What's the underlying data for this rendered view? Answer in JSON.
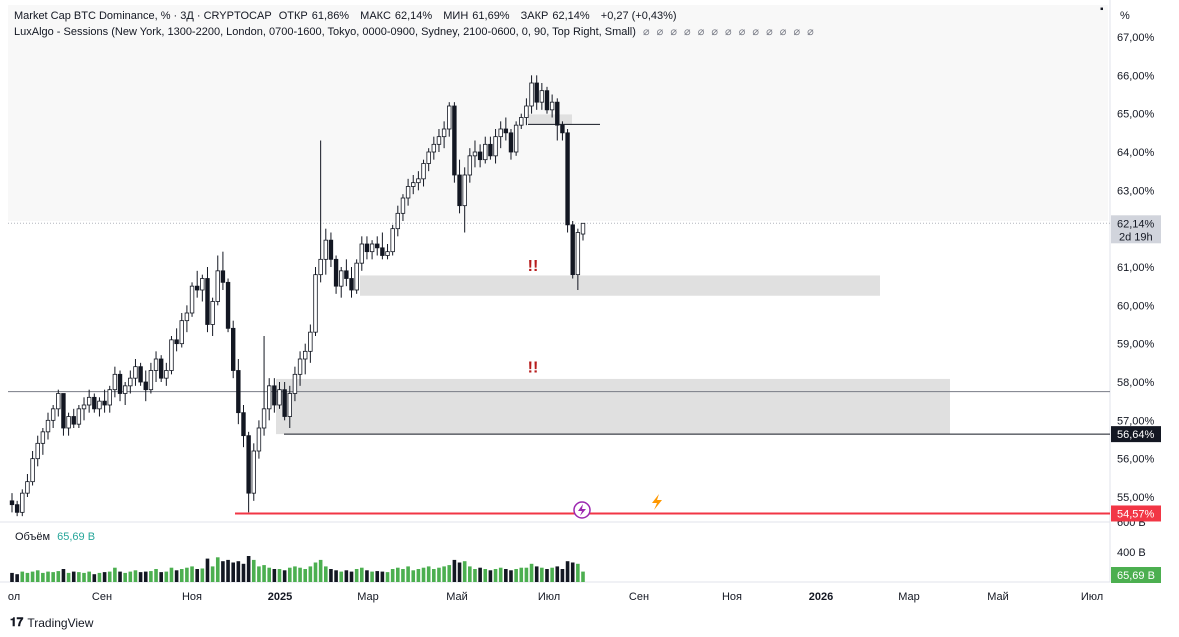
{
  "header": {
    "symbol": "Market Cap BTC Dominance, % · 3Д · CRYPTOCAP",
    "open_label": "ОТКР",
    "open_value": "61,86%",
    "high_label": "МАКС",
    "high_value": "62,14%",
    "low_label": "МИН",
    "low_value": "61,69%",
    "close_label": "ЗАКР",
    "close_value": "62,14%",
    "change": "+0,27 (+0,43%)",
    "indicator": "LuxAlgo - Sessions (New York, 1300-2200, London, 0700-1600, Tokyo, 0000-0900, Sydney, 2100-0600, 0, 90, Top Right, Small)",
    "indicator_dots": "⌀ ⌀ ⌀ ⌀ ⌀ ⌀ ⌀ ⌀ ⌀ ⌀ ⌀ ⌀ ⌀"
  },
  "axis_unit": "%",
  "volume_label": "Объём",
  "volume_value": "65,69 B",
  "brand": "TradingView",
  "colors": {
    "up": "#ffffff",
    "down": "#131722",
    "wick": "#131722",
    "volume_up": "#4caf50",
    "volume_down": "#131722",
    "zone": "#e0e0e0",
    "red_line": "#f23645",
    "current_bg": "#d1d4dc"
  },
  "chart_data": {
    "type": "candlestick",
    "y_scale": "percent",
    "ylim": [
      54.6,
      67.2
    ],
    "y_ticks": [
      "67,00%",
      "66,00%",
      "65,00%",
      "64,00%",
      "63,00%",
      "62,00%",
      "61,00%",
      "60,00%",
      "59,00%",
      "58,00%",
      "57,00%",
      "56,00%",
      "55,00%"
    ],
    "y_tick_values": [
      67,
      66,
      65,
      64,
      63,
      62,
      61,
      60,
      59,
      58,
      57,
      56,
      55
    ],
    "x_ticks": [
      "ол",
      "Сен",
      "Ноя",
      "2025",
      "Мар",
      "Май",
      "Июл",
      "Сен",
      "Ноя",
      "2026",
      "Мар",
      "Май",
      "Июл"
    ],
    "x_ticks_bold": [
      "2025",
      "2026"
    ],
    "price_labels": [
      {
        "value": 62.14,
        "text": "62,14%",
        "sub": "2d 19h",
        "style": "current"
      },
      {
        "value": 56.64,
        "text": "56,64%",
        "style": "dark"
      },
      {
        "value": 54.57,
        "text": "54,57%",
        "style": "red"
      }
    ],
    "volume_axis": [
      "400 B"
    ],
    "volume_axis_partial": "600 B",
    "volume_current": "65,69 B",
    "horizontal_lines": [
      {
        "value": 57.75,
        "color": "#787b86"
      },
      {
        "value": 56.64,
        "color": "#131722"
      },
      {
        "value": 54.57,
        "color": "#f23645"
      },
      {
        "value": 64.72,
        "color": "#131722"
      }
    ],
    "zones": [
      {
        "y_top": 60.78,
        "y_bottom": 60.25
      },
      {
        "y_top": 58.08,
        "y_bottom": 56.64
      },
      {
        "y_top": 64.98,
        "y_bottom": 64.72
      }
    ],
    "annotations": [
      {
        "text": "!!",
        "color": "#b71c1c",
        "near": 61.0
      },
      {
        "text": "!!",
        "color": "#b71c1c",
        "near": 58.3
      }
    ],
    "series": [
      {
        "ohlc": [
          [
            54.9,
            55.1,
            54.6,
            54.8
          ],
          [
            54.8,
            54.9,
            54.5,
            54.6
          ],
          [
            54.6,
            55.2,
            54.5,
            55.1
          ],
          [
            55.1,
            55.6,
            55.0,
            55.4
          ],
          [
            55.4,
            56.2,
            55.3,
            56.0
          ],
          [
            56.0,
            56.6,
            55.8,
            56.4
          ],
          [
            56.4,
            56.8,
            56.1,
            56.7
          ],
          [
            56.7,
            57.2,
            56.5,
            57.0
          ],
          [
            57.0,
            57.4,
            56.8,
            57.3
          ],
          [
            57.3,
            57.8,
            57.1,
            57.7
          ],
          [
            57.7,
            57.7,
            56.6,
            56.8
          ],
          [
            56.8,
            57.2,
            56.6,
            57.1
          ],
          [
            57.1,
            57.3,
            56.8,
            56.9
          ],
          [
            56.9,
            57.4,
            56.8,
            57.3
          ],
          [
            57.3,
            57.6,
            57.0,
            57.4
          ],
          [
            57.4,
            57.8,
            57.2,
            57.6
          ],
          [
            57.6,
            57.7,
            57.2,
            57.3
          ],
          [
            57.3,
            57.6,
            57.1,
            57.5
          ],
          [
            57.5,
            57.8,
            57.2,
            57.4
          ],
          [
            57.4,
            57.9,
            57.2,
            57.8
          ],
          [
            57.8,
            58.4,
            57.6,
            58.2
          ],
          [
            58.2,
            58.3,
            57.5,
            57.7
          ],
          [
            57.7,
            58.0,
            57.4,
            57.9
          ],
          [
            57.9,
            58.3,
            57.7,
            58.1
          ],
          [
            58.1,
            58.6,
            57.9,
            58.4
          ],
          [
            58.4,
            58.5,
            57.9,
            58.0
          ],
          [
            58.0,
            58.3,
            57.5,
            57.8
          ],
          [
            57.8,
            58.5,
            57.7,
            58.3
          ],
          [
            58.3,
            58.8,
            58.0,
            58.6
          ],
          [
            58.6,
            58.7,
            58.0,
            58.1
          ],
          [
            58.1,
            58.5,
            57.9,
            58.3
          ],
          [
            58.3,
            59.2,
            58.2,
            59.1
          ],
          [
            59.1,
            59.4,
            58.8,
            59.0
          ],
          [
            59.0,
            59.8,
            58.9,
            59.6
          ],
          [
            59.6,
            60.0,
            59.3,
            59.8
          ],
          [
            59.8,
            60.6,
            59.7,
            60.5
          ],
          [
            60.5,
            60.9,
            60.2,
            60.4
          ],
          [
            60.4,
            60.8,
            60.1,
            60.7
          ],
          [
            60.7,
            61.0,
            59.3,
            59.5
          ],
          [
            59.5,
            60.2,
            59.2,
            60.1
          ],
          [
            60.1,
            61.3,
            60.0,
            60.9
          ],
          [
            60.9,
            61.4,
            60.4,
            60.6
          ],
          [
            60.6,
            60.7,
            59.3,
            59.4
          ],
          [
            59.4,
            59.6,
            58.1,
            58.3
          ],
          [
            58.3,
            58.6,
            56.9,
            57.2
          ],
          [
            57.2,
            57.4,
            56.3,
            56.6
          ],
          [
            56.6,
            56.7,
            54.6,
            55.1
          ],
          [
            55.1,
            56.4,
            54.9,
            56.2
          ],
          [
            56.2,
            57.0,
            56.0,
            56.8
          ],
          [
            56.8,
            59.2,
            56.6,
            57.3
          ],
          [
            57.3,
            58.1,
            57.0,
            57.9
          ],
          [
            57.9,
            58.1,
            57.2,
            57.4
          ],
          [
            57.4,
            58.0,
            57.3,
            57.8
          ],
          [
            57.8,
            58.0,
            57.0,
            57.1
          ],
          [
            57.1,
            57.9,
            56.8,
            57.7
          ],
          [
            57.7,
            58.4,
            57.5,
            58.2
          ],
          [
            58.2,
            58.8,
            57.9,
            58.6
          ],
          [
            58.6,
            59.0,
            58.2,
            58.8
          ],
          [
            58.8,
            59.5,
            58.5,
            59.3
          ],
          [
            59.3,
            61.0,
            59.2,
            60.8
          ],
          [
            60.8,
            64.3,
            60.6,
            61.2
          ],
          [
            61.2,
            62.0,
            60.8,
            61.7
          ],
          [
            61.7,
            61.9,
            61.0,
            61.2
          ],
          [
            61.2,
            61.3,
            60.3,
            60.5
          ],
          [
            60.5,
            61.0,
            60.2,
            60.9
          ],
          [
            60.9,
            61.2,
            60.5,
            60.7
          ],
          [
            60.7,
            61.0,
            60.2,
            60.4
          ],
          [
            60.4,
            61.2,
            60.3,
            61.1
          ],
          [
            61.1,
            61.8,
            60.9,
            61.6
          ],
          [
            61.6,
            61.8,
            61.2,
            61.4
          ],
          [
            61.4,
            61.7,
            61.2,
            61.6
          ],
          [
            61.6,
            61.8,
            61.3,
            61.5
          ],
          [
            61.5,
            61.9,
            61.2,
            61.3
          ],
          [
            61.3,
            61.6,
            61.2,
            61.4
          ],
          [
            61.4,
            62.1,
            61.3,
            62.0
          ],
          [
            62.0,
            62.6,
            61.8,
            62.4
          ],
          [
            62.4,
            62.9,
            62.2,
            62.8
          ],
          [
            62.8,
            63.3,
            62.6,
            63.1
          ],
          [
            63.1,
            63.4,
            62.9,
            63.2
          ],
          [
            63.2,
            63.5,
            63.0,
            63.3
          ],
          [
            63.3,
            63.8,
            63.1,
            63.7
          ],
          [
            63.7,
            64.1,
            63.5,
            64.0
          ],
          [
            64.0,
            64.4,
            63.8,
            64.2
          ],
          [
            64.2,
            64.6,
            64.0,
            64.4
          ],
          [
            64.4,
            64.8,
            64.1,
            64.6
          ],
          [
            64.6,
            65.3,
            64.4,
            65.2
          ],
          [
            65.2,
            65.3,
            63.2,
            63.4
          ],
          [
            63.4,
            63.8,
            62.4,
            62.6
          ],
          [
            62.6,
            63.6,
            61.9,
            63.4
          ],
          [
            63.4,
            64.1,
            63.2,
            63.9
          ],
          [
            63.9,
            64.3,
            63.6,
            64.0
          ],
          [
            64.0,
            64.2,
            63.6,
            63.8
          ],
          [
            63.8,
            64.4,
            63.7,
            64.2
          ],
          [
            64.2,
            64.4,
            63.8,
            63.9
          ],
          [
            63.9,
            64.6,
            63.7,
            64.4
          ],
          [
            64.4,
            64.8,
            64.1,
            64.6
          ],
          [
            64.6,
            64.9,
            64.3,
            64.5
          ],
          [
            64.5,
            64.6,
            63.8,
            64.0
          ],
          [
            64.0,
            64.8,
            63.9,
            64.7
          ],
          [
            64.7,
            65.0,
            64.6,
            64.9
          ],
          [
            64.9,
            65.4,
            64.7,
            65.2
          ],
          [
            65.2,
            66.0,
            65.0,
            65.8
          ],
          [
            65.8,
            66.0,
            65.1,
            65.3
          ],
          [
            65.3,
            65.8,
            65.1,
            65.6
          ],
          [
            65.6,
            65.7,
            65.0,
            65.1
          ],
          [
            65.1,
            65.5,
            64.9,
            65.3
          ],
          [
            65.3,
            65.4,
            64.3,
            64.7
          ],
          [
            64.7,
            64.8,
            64.3,
            64.5
          ],
          [
            64.5,
            64.6,
            61.9,
            62.1
          ],
          [
            62.1,
            62.2,
            60.7,
            60.8
          ],
          [
            60.8,
            62.0,
            60.4,
            61.9
          ],
          [
            61.86,
            62.14,
            61.69,
            62.14
          ]
        ],
        "volume": [
          0.35,
          0.3,
          0.4,
          0.35,
          0.4,
          0.45,
          0.35,
          0.4,
          0.38,
          0.42,
          0.5,
          0.35,
          0.4,
          0.38,
          0.35,
          0.4,
          0.3,
          0.35,
          0.38,
          0.4,
          0.55,
          0.4,
          0.35,
          0.4,
          0.45,
          0.38,
          0.4,
          0.42,
          0.5,
          0.38,
          0.4,
          0.55,
          0.45,
          0.5,
          0.55,
          0.6,
          0.5,
          0.52,
          0.9,
          0.6,
          0.95,
          0.8,
          0.85,
          0.75,
          0.8,
          0.7,
          1.0,
          0.85,
          0.6,
          0.65,
          0.55,
          0.5,
          0.5,
          0.45,
          0.55,
          0.6,
          0.55,
          0.5,
          0.6,
          0.75,
          0.85,
          0.6,
          0.5,
          0.45,
          0.4,
          0.45,
          0.4,
          0.5,
          0.55,
          0.45,
          0.4,
          0.42,
          0.4,
          0.38,
          0.5,
          0.55,
          0.5,
          0.6,
          0.45,
          0.5,
          0.55,
          0.6,
          0.5,
          0.55,
          0.6,
          0.65,
          0.85,
          0.75,
          0.8,
          0.6,
          0.5,
          0.55,
          0.5,
          0.45,
          0.5,
          0.55,
          0.5,
          0.45,
          0.5,
          0.55,
          0.55,
          0.7,
          0.6,
          0.55,
          0.5,
          0.55,
          0.6,
          0.5,
          0.8,
          0.75,
          0.7,
          0.4
        ]
      }
    ]
  }
}
